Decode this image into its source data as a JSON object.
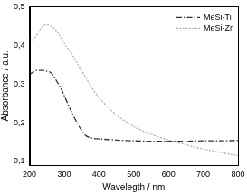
{
  "chart_data": {
    "type": "line",
    "x_label": "Wavelegth / nm",
    "y_label": "Absorbance / a.u.",
    "x": [
      200,
      210,
      220,
      230,
      240,
      250,
      260,
      270,
      280,
      290,
      300,
      320,
      340,
      360,
      380,
      400,
      450,
      500,
      550,
      600,
      650,
      700,
      750,
      800
    ],
    "series": [
      {
        "name": "MeSi-Ti",
        "color": "#333333",
        "line_style": "dashdot",
        "values": [
          0.325,
          0.33,
          0.335,
          0.335,
          0.335,
          0.333,
          0.33,
          0.32,
          0.305,
          0.29,
          0.27,
          0.23,
          0.195,
          0.168,
          0.16,
          0.158,
          0.155,
          0.153,
          0.152,
          0.152,
          0.152,
          0.153,
          0.153,
          0.154
        ]
      },
      {
        "name": "MeSi-Zr",
        "color": "#b0b0b0",
        "line_style": "dotted",
        "values": [
          0.42,
          0.415,
          0.425,
          0.44,
          0.45,
          0.453,
          0.45,
          0.445,
          0.435,
          0.42,
          0.405,
          0.38,
          0.35,
          0.32,
          0.29,
          0.265,
          0.22,
          0.19,
          0.17,
          0.155,
          0.143,
          0.132,
          0.123,
          0.115
        ]
      }
    ],
    "xlim": [
      200,
      800
    ],
    "xticks": [
      200,
      300,
      400,
      500,
      600,
      700,
      800
    ],
    "ylim": [
      0.09,
      0.5
    ],
    "yticks": [
      {
        "value": 0.1,
        "label": "0,1"
      },
      {
        "value": 0.2,
        "label": "0,2"
      },
      {
        "value": 0.3,
        "label": "0,3"
      },
      {
        "value": 0.4,
        "label": "0,4"
      },
      {
        "value": 0.5,
        "label": "0,5"
      }
    ],
    "grid": false,
    "legend": "top right"
  }
}
